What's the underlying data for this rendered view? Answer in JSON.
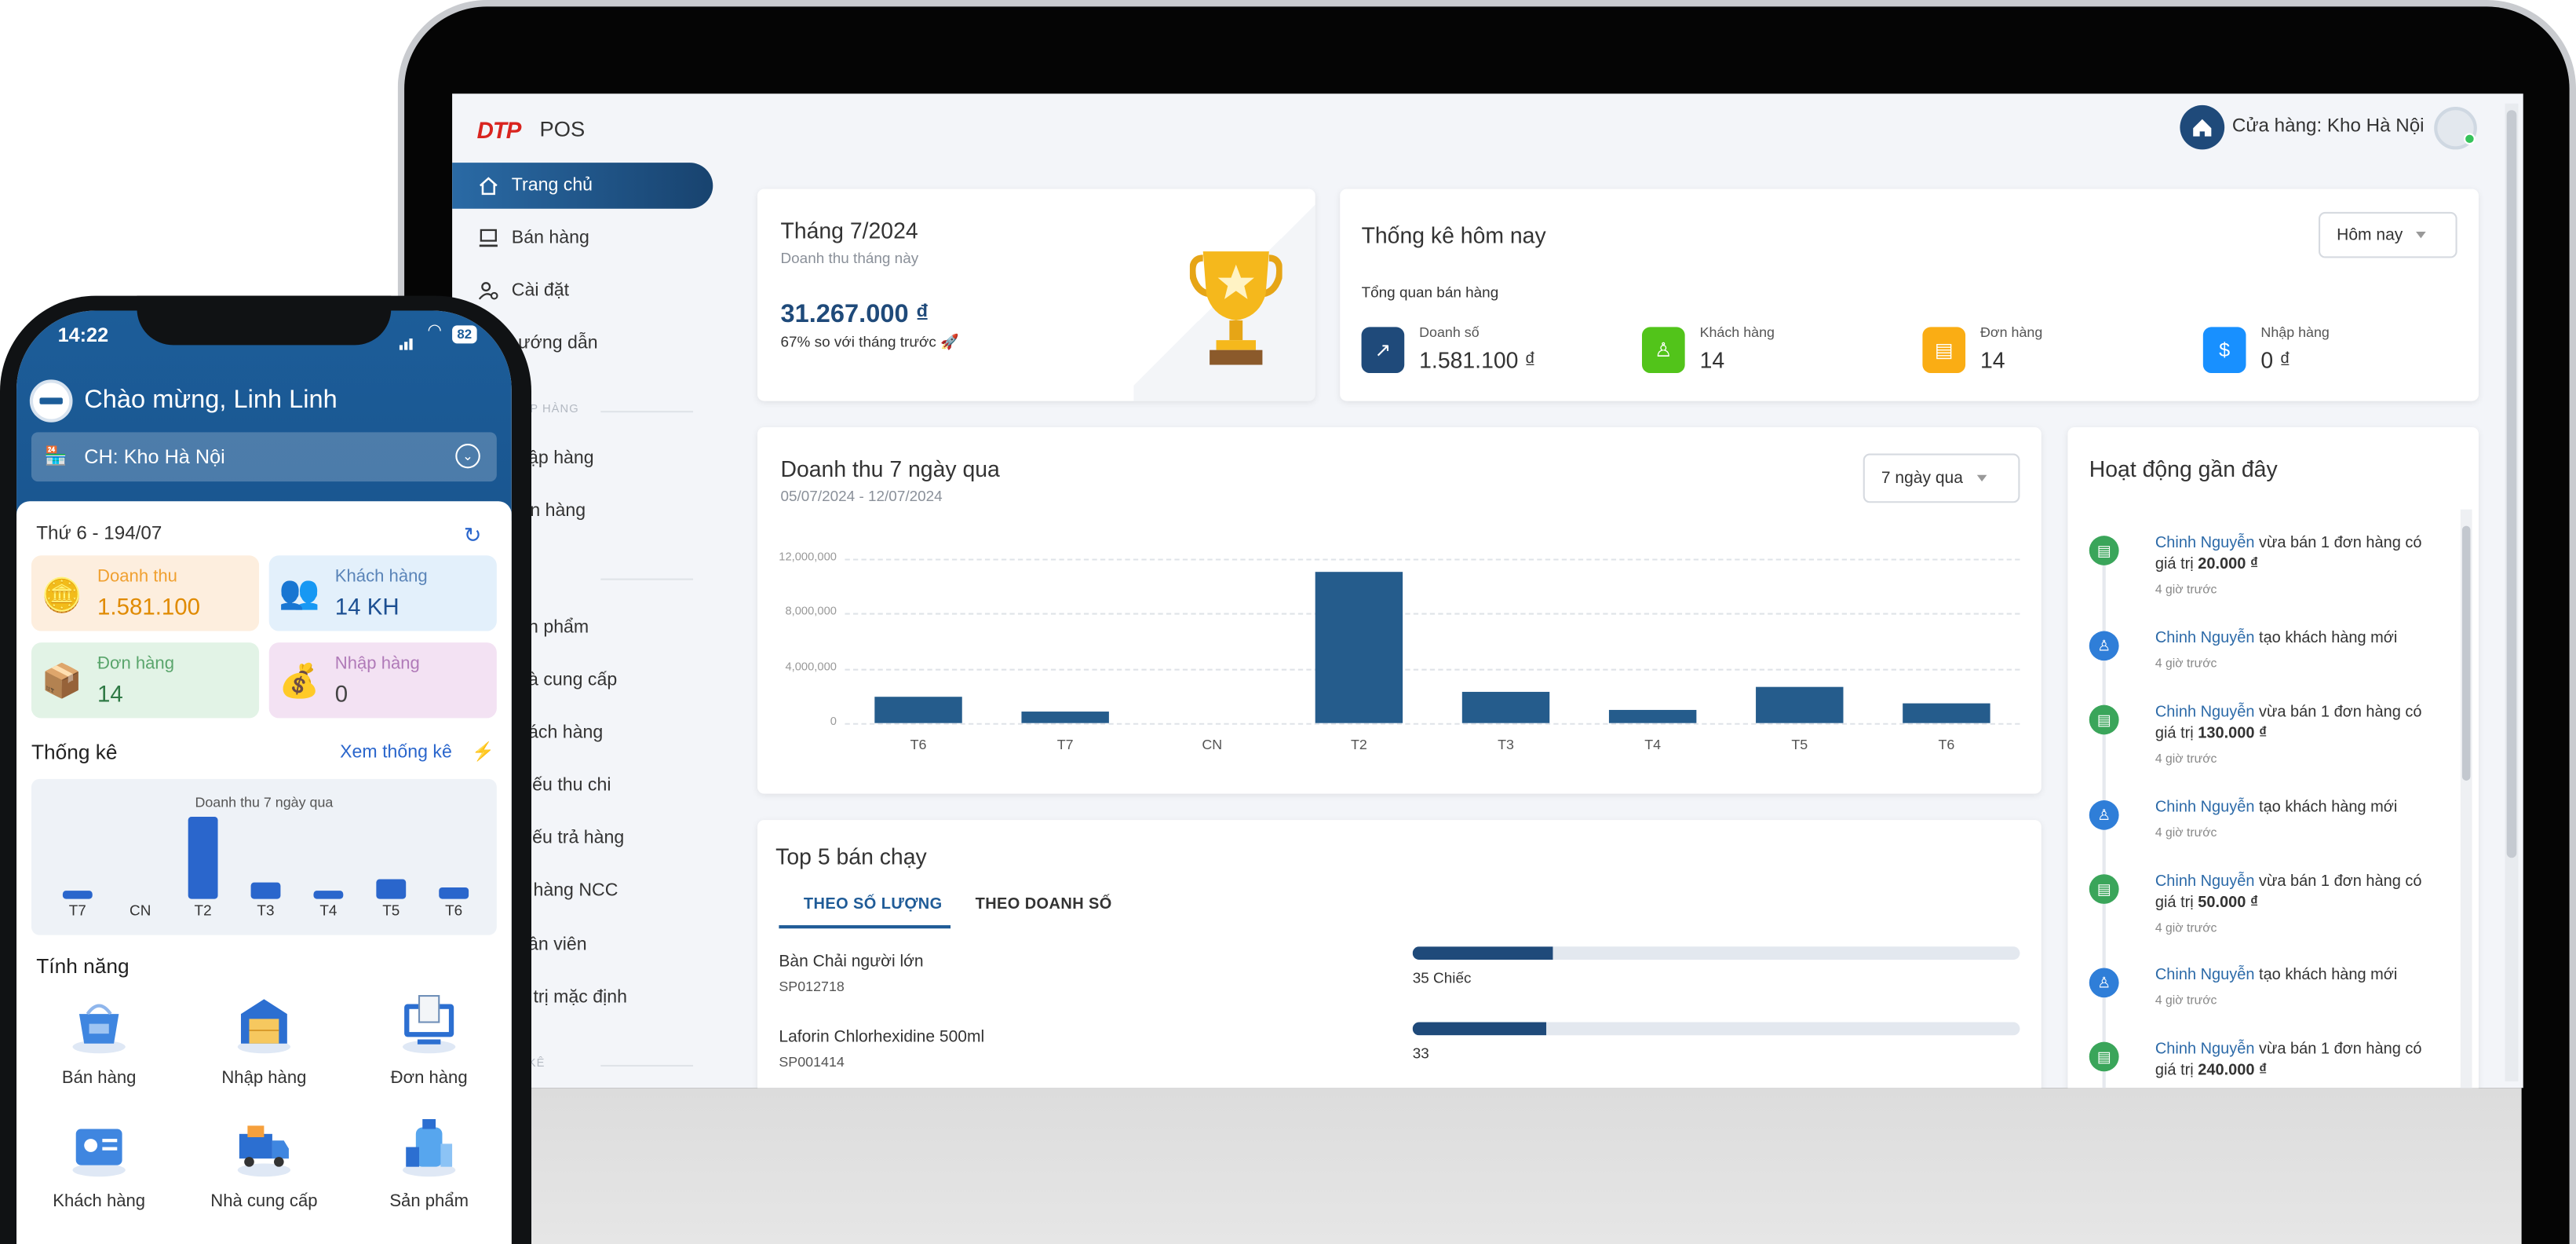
{
  "app": {
    "logo": "DTP",
    "name": "POS",
    "store_label": "Cửa hàng: Kho Hà Nội"
  },
  "sidebar": {
    "items": [
      {
        "label": "Trang chủ",
        "icon": "home-icon"
      },
      {
        "label": "Bán hàng",
        "icon": "pos-icon"
      },
      {
        "label": "Cài đặt",
        "icon": "settings-icon"
      },
      {
        "label": "ướng dẫn",
        "icon": "guide-icon"
      },
      {
        "label": "hập hàng"
      },
      {
        "label": "ơn hàng"
      },
      {
        "label": "ản phẩm"
      },
      {
        "label": "hà cung cấp"
      },
      {
        "label": "hách hàng"
      },
      {
        "label": "hiếu thu chi"
      },
      {
        "label": "hiếu trả hàng"
      },
      {
        "label": "ả hàng NCC"
      },
      {
        "label": "hân viên"
      },
      {
        "label": "á trị mặc định"
      }
    ],
    "section_import": "ẬP HÀNG",
    "section_stats": "KÊ"
  },
  "month_card": {
    "title": "Tháng 7/2024",
    "subtitle": "Doanh thu tháng này",
    "value": "31.267.000 ₫",
    "compare": "67% so với tháng trước 🚀"
  },
  "today_card": {
    "title": "Thống kê hôm nay",
    "dropdown": "Hôm nay",
    "overview": "Tổng quan bán hàng",
    "kpis": [
      {
        "label": "Doanh số",
        "value": "1.581.100 ₫",
        "color": "#1f4a7a"
      },
      {
        "label": "Khách hàng",
        "value": "14",
        "color": "#52c41a"
      },
      {
        "label": "Đơn hàng",
        "value": "14",
        "color": "#faad14"
      },
      {
        "label": "Nhập hàng",
        "value": "0 ₫",
        "color": "#1890ff"
      }
    ]
  },
  "chart_data": {
    "type": "bar",
    "title": "Doanh thu 7 ngày qua",
    "subtitle": "05/07/2024 - 12/07/2024",
    "dropdown": "7 ngày qua",
    "categories": [
      "T6",
      "T7",
      "CN",
      "T2",
      "T3",
      "T4",
      "T5",
      "T6"
    ],
    "values": [
      1900000,
      800000,
      0,
      11000000,
      2300000,
      1000000,
      2700000,
      1500000
    ],
    "yticks": [
      "12,000,000",
      "8,000,000",
      "4,000,000",
      "0"
    ],
    "ylim": [
      0,
      12000000
    ]
  },
  "top5": {
    "title": "Top 5 bán chạy",
    "tabs": [
      "THEO SỐ LƯỢNG",
      "THEO DOANH SỐ"
    ],
    "items": [
      {
        "name": "Bàn Chải người lớn",
        "sku": "SP012718",
        "qty": "35 Chiếc",
        "ratio": 0.23
      },
      {
        "name": "Laforin Chlorhexidine 500ml",
        "sku": "SP001414",
        "qty": "33",
        "ratio": 0.22
      }
    ]
  },
  "activity": {
    "title": "Hoạt động gần đây",
    "items": [
      {
        "user": "Chinh Nguyễn",
        "text": " vừa bán 1 đơn hàng có giá trị ",
        "amount": "20.000 ₫",
        "time": "4 giờ trước",
        "kind": "order"
      },
      {
        "user": "Chinh Nguyễn",
        "text": " tạo khách hàng mới",
        "amount": "",
        "time": "4 giờ trước",
        "kind": "customer"
      },
      {
        "user": "Chinh Nguyễn",
        "text": " vừa bán 1 đơn hàng có giá trị ",
        "amount": "130.000 ₫",
        "time": "4 giờ trước",
        "kind": "order"
      },
      {
        "user": "Chinh Nguyễn",
        "text": " tạo khách hàng mới",
        "amount": "",
        "time": "4 giờ trước",
        "kind": "customer"
      },
      {
        "user": "Chinh Nguyễn",
        "text": " vừa bán 1 đơn hàng có giá trị ",
        "amount": "50.000 ₫",
        "time": "4 giờ trước",
        "kind": "order"
      },
      {
        "user": "Chinh Nguyễn",
        "text": " tạo khách hàng mới",
        "amount": "",
        "time": "4 giờ trước",
        "kind": "customer"
      },
      {
        "user": "Chinh Nguyễn",
        "text": " vừa bán 1 đơn hàng có giá trị ",
        "amount": "240.000 ₫",
        "time": "",
        "kind": "order"
      }
    ]
  },
  "mobile": {
    "time": "14:22",
    "battery": "82",
    "greeting": "Chào mừng, Linh Linh",
    "store": "CH: Kho Hà Nội",
    "date": "Thứ 6 - 194/07",
    "tiles": [
      {
        "label": "Doanh thu",
        "value": "1.581.100"
      },
      {
        "label": "Khách hàng",
        "value": "14 KH"
      },
      {
        "label": "Đơn hàng",
        "value": "14"
      },
      {
        "label": "Nhập hàng",
        "value": "0"
      }
    ],
    "stats_title": "Thống kê",
    "stats_link": "Xem thống kê",
    "mini_chart": {
      "title": "Doanh thu 7 ngày qua",
      "categories": [
        "T7",
        "CN",
        "T2",
        "T3",
        "T4",
        "T5",
        "T6"
      ],
      "values": [
        800000,
        0,
        11000000,
        2300000,
        1000000,
        2700000,
        1500000
      ]
    },
    "features_title": "Tính năng",
    "features": [
      "Bán hàng",
      "Nhập hàng",
      "Đơn hàng",
      "Khách hàng",
      "Nhà cung cấp",
      "Sản phẩm"
    ]
  }
}
